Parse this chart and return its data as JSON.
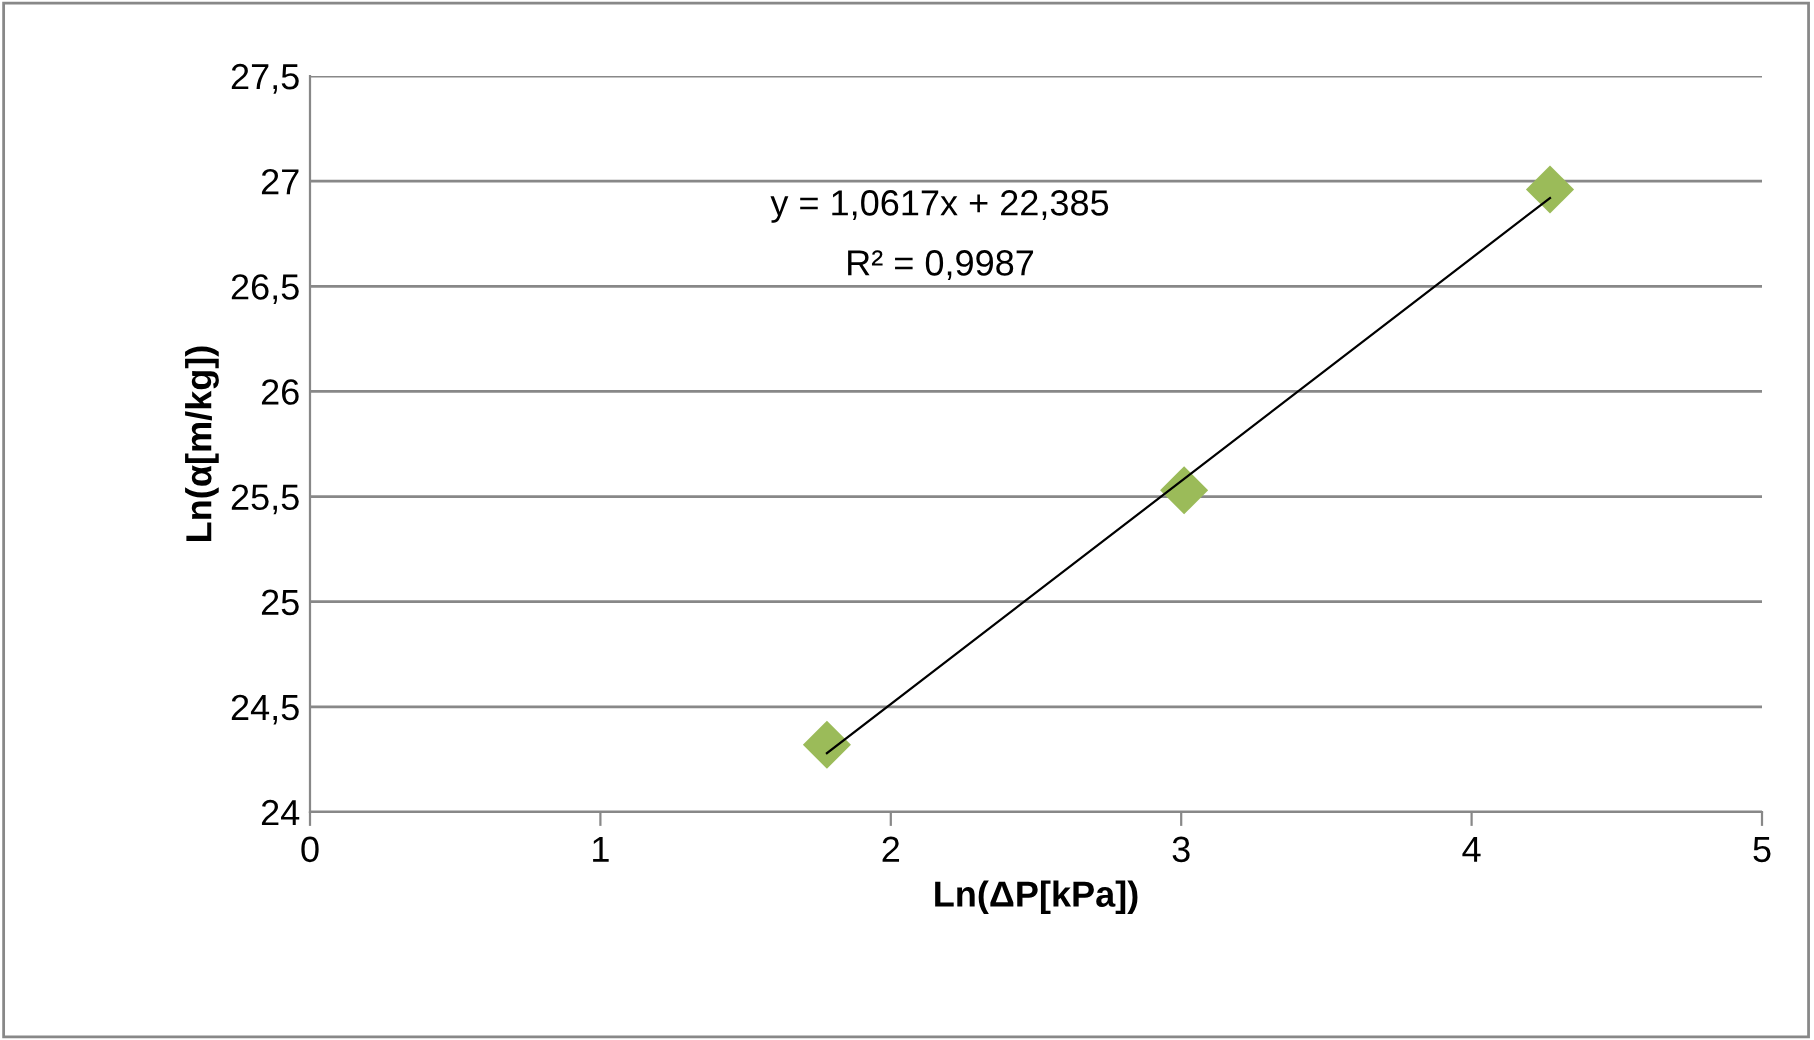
{
  "chart_data": {
    "type": "scatter",
    "xlabel": "Ln(ΔP[kPa])",
    "ylabel": "Ln(α[m/kg])",
    "series": [
      {
        "color": "#9bbb59",
        "marker": "diamond",
        "x": [
          1.78,
          3.01,
          4.27
        ],
        "values": [
          24.32,
          25.53,
          26.96
        ]
      },
      {
        "type": "line",
        "color": "#000000",
        "marker": "none",
        "line_style": "solid",
        "x": [
          1.78,
          4.27
        ],
        "values": [
          24.28,
          26.92
        ]
      }
    ],
    "annotations": [
      "y = 1,0617x + 22,385",
      "R² = 0,9987"
    ],
    "xlim": [
      0,
      5
    ],
    "xticks": [
      0,
      1,
      2,
      3,
      4,
      5
    ],
    "ylim": [
      24,
      27.5
    ],
    "yticks": [
      24,
      {
        "value": 24.5,
        "label": "24,5"
      },
      25,
      {
        "value": 25.5,
        "label": "25,5"
      },
      26,
      {
        "value": 26.5,
        "label": "26,5"
      },
      27,
      {
        "value": 27.5,
        "label": "27,5"
      }
    ],
    "grid": "y",
    "legend": false
  }
}
